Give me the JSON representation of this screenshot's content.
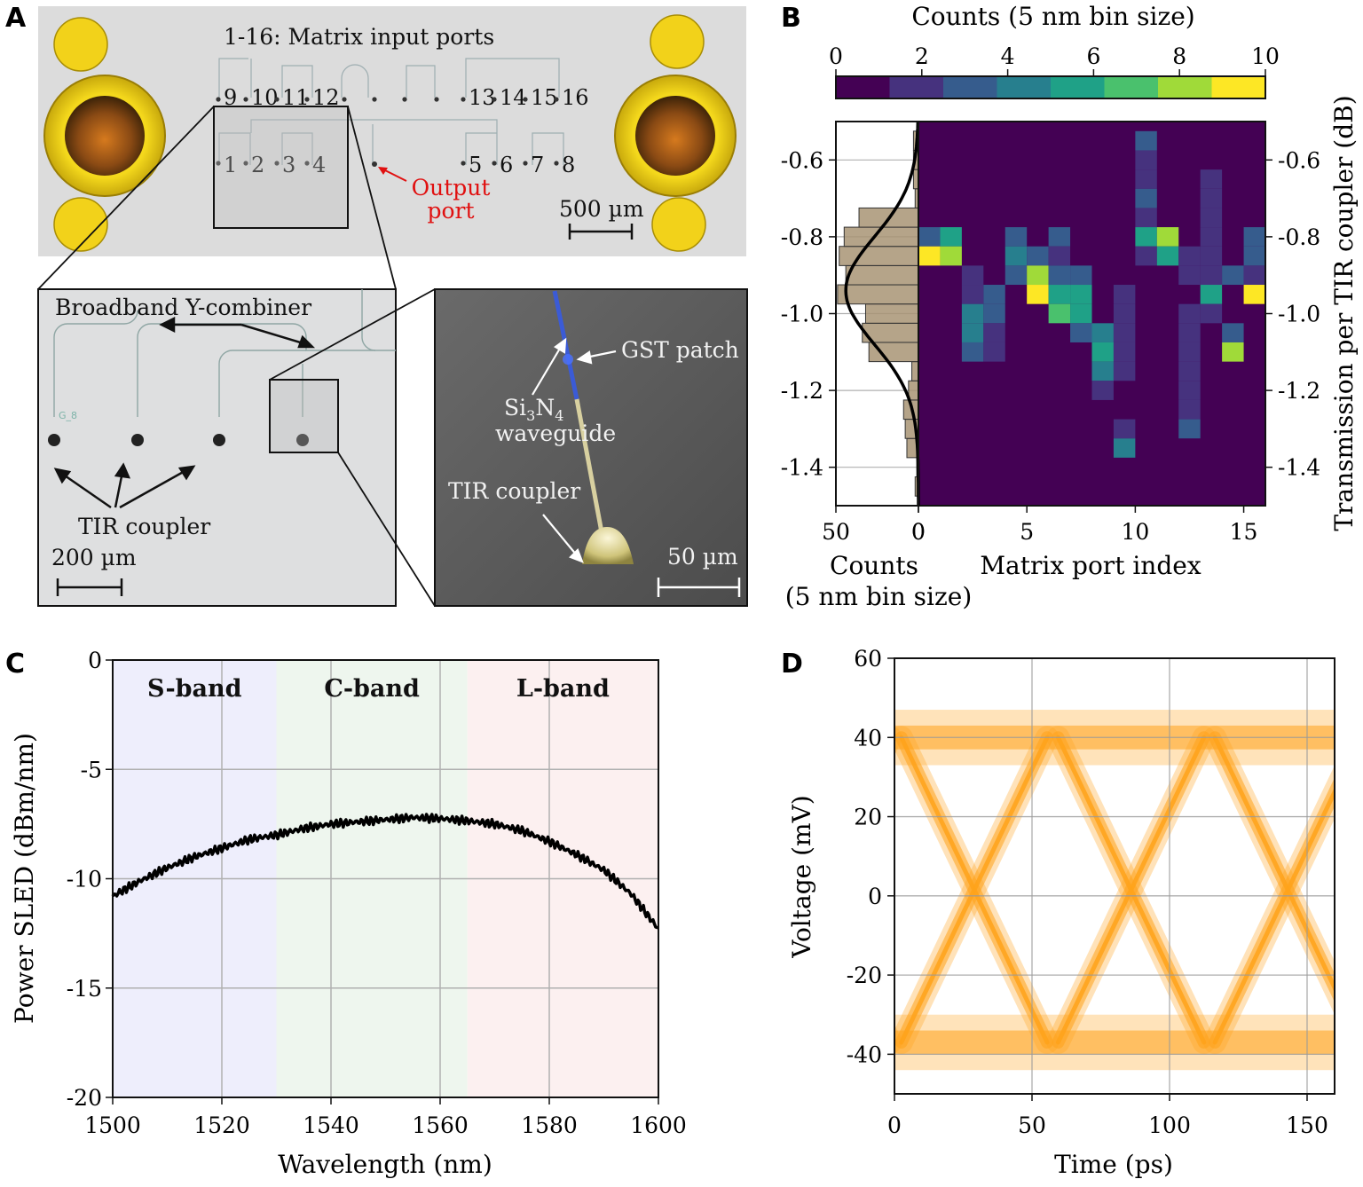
{
  "panels": {
    "a": "A",
    "b": "B",
    "c": "C",
    "d": "D"
  },
  "panel_a": {
    "title": "1-16: Matrix input ports",
    "ports_top": [
      "9",
      "10",
      "11",
      "12",
      "13",
      "14",
      "15",
      "16"
    ],
    "ports_bottom": [
      "1",
      "2",
      "3",
      "4",
      "5",
      "6",
      "7",
      "8"
    ],
    "output_port": [
      "Output",
      "port"
    ],
    "scale_main": "500 µm",
    "combiner_label": "Broadband Y-combiner",
    "tir_label": "TIR coupler",
    "scale_zoom": "200 µm",
    "chip_label": "G_8",
    "sem": {
      "gst": "GST  patch",
      "sin_prefix": "Si",
      "sin_sub1": "3",
      "sin_mid": "N",
      "sin_sub2": "4",
      "waveguide": "waveguide",
      "tir": "TIR coupler",
      "scale": "50 µm"
    },
    "colors": {
      "output": "#e01010",
      "pad": "#f2d21a",
      "chip": "#dcdcdc"
    }
  },
  "chart_data": [
    {
      "id": "B",
      "type": "heatmap",
      "colorbar": {
        "label": "Counts (5 nm bin size)",
        "range": [
          0,
          10
        ],
        "ticks": [
          "0",
          "2",
          "4",
          "6",
          "8",
          "10"
        ],
        "colors": [
          "#440154",
          "#46327e",
          "#365c8d",
          "#277f8e",
          "#1fa187",
          "#4ac16d",
          "#a0da39",
          "#fde725"
        ]
      },
      "xlabel": "Matrix port index",
      "xlim": [
        0,
        16
      ],
      "x_ticks": [
        "0",
        "5",
        "10",
        "15"
      ],
      "ylim": [
        -1.5,
        -0.5
      ],
      "y_ticks": [
        "-0.6",
        "-0.8",
        "-1.0",
        "-1.2",
        "-1.4"
      ],
      "y_tick_values": [
        -0.6,
        -0.8,
        -1.0,
        -1.2,
        -1.4
      ],
      "ylabel_right": "Transmission per TIR coupler (dB)",
      "bin_height_db": 0.05,
      "cells": [
        [
          0,
          -0.8,
          3
        ],
        [
          0,
          -0.85,
          10
        ],
        [
          1,
          -0.8,
          5
        ],
        [
          1,
          -0.85,
          9
        ],
        [
          2,
          -0.9,
          2
        ],
        [
          2,
          -0.95,
          2
        ],
        [
          2,
          -1.0,
          4
        ],
        [
          2,
          -1.05,
          4
        ],
        [
          2,
          -1.1,
          3
        ],
        [
          3,
          -0.95,
          3
        ],
        [
          3,
          -1.0,
          3
        ],
        [
          3,
          -1.05,
          2
        ],
        [
          3,
          -1.1,
          2
        ],
        [
          4,
          -0.8,
          3
        ],
        [
          4,
          -0.85,
          4
        ],
        [
          4,
          -0.9,
          3
        ],
        [
          5,
          -0.85,
          3
        ],
        [
          5,
          -0.9,
          8
        ],
        [
          5,
          -0.95,
          10
        ],
        [
          6,
          -0.8,
          3
        ],
        [
          6,
          -0.85,
          2
        ],
        [
          6,
          -0.9,
          3
        ],
        [
          6,
          -0.95,
          5
        ],
        [
          6,
          -1.0,
          7
        ],
        [
          7,
          -0.9,
          3
        ],
        [
          7,
          -0.95,
          5
        ],
        [
          7,
          -1.0,
          5
        ],
        [
          7,
          -1.05,
          3
        ],
        [
          8,
          -1.05,
          4
        ],
        [
          8,
          -1.1,
          6
        ],
        [
          8,
          -1.15,
          4
        ],
        [
          8,
          -1.2,
          2
        ],
        [
          9,
          -0.95,
          2
        ],
        [
          9,
          -1.0,
          2
        ],
        [
          9,
          -1.05,
          2
        ],
        [
          9,
          -1.1,
          2
        ],
        [
          9,
          -1.15,
          1
        ],
        [
          9,
          -1.3,
          2
        ],
        [
          9,
          -1.35,
          4
        ],
        [
          10,
          -0.55,
          3
        ],
        [
          10,
          -0.6,
          1
        ],
        [
          10,
          -0.65,
          1
        ],
        [
          10,
          -0.7,
          3
        ],
        [
          10,
          -0.75,
          2
        ],
        [
          10,
          -0.8,
          6
        ],
        [
          10,
          -0.85,
          1
        ],
        [
          11,
          -0.8,
          8
        ],
        [
          11,
          -0.85,
          6
        ],
        [
          12,
          -0.85,
          1
        ],
        [
          12,
          -0.9,
          1
        ],
        [
          13,
          -0.65,
          1
        ],
        [
          13,
          -0.7,
          1
        ],
        [
          13,
          -0.75,
          1
        ],
        [
          13,
          -0.8,
          1
        ],
        [
          13,
          -0.85,
          1
        ],
        [
          13,
          -0.9,
          1
        ],
        [
          13,
          -0.95,
          5
        ],
        [
          13,
          -1.0,
          2
        ],
        [
          12,
          -1.0,
          1
        ],
        [
          12,
          -1.05,
          1
        ],
        [
          12,
          -1.1,
          1
        ],
        [
          12,
          -1.15,
          1
        ],
        [
          12,
          -1.2,
          1
        ],
        [
          12,
          -1.25,
          1
        ],
        [
          12,
          -1.3,
          3
        ],
        [
          14,
          -0.9,
          3
        ],
        [
          14,
          -1.05,
          3
        ],
        [
          14,
          -1.1,
          8
        ],
        [
          15,
          -0.8,
          3
        ],
        [
          15,
          -0.85,
          3
        ],
        [
          15,
          -0.9,
          2
        ],
        [
          15,
          -0.95,
          10
        ]
      ],
      "histogram": {
        "xlabel": [
          "Counts",
          "(5 nm bin size)"
        ],
        "xlim": [
          50,
          0
        ],
        "x_ticks": [
          "50",
          "0"
        ],
        "bars": [
          [
            -1.45,
            2
          ],
          [
            -1.4,
            1
          ],
          [
            -1.35,
            7
          ],
          [
            -1.3,
            8
          ],
          [
            -1.25,
            9
          ],
          [
            -1.2,
            6
          ],
          [
            -1.15,
            4
          ],
          [
            -1.1,
            30
          ],
          [
            -1.05,
            34
          ],
          [
            -1.0,
            32
          ],
          [
            -0.95,
            49
          ],
          [
            -0.9,
            44
          ],
          [
            -0.85,
            48
          ],
          [
            -0.8,
            45
          ],
          [
            -0.75,
            36
          ],
          [
            -0.7,
            2
          ],
          [
            -0.65,
            3
          ],
          [
            -0.6,
            3
          ],
          [
            -0.55,
            3
          ]
        ],
        "gauss": {
          "mean": -0.94,
          "sd": 0.14,
          "peak": 44
        },
        "bar_color": "#a89474"
      }
    },
    {
      "id": "C",
      "type": "line",
      "xlabel": "Wavelength (nm)",
      "ylabel": "Power SLED (dBm/nm)",
      "xlim": [
        1500,
        1600
      ],
      "ylim": [
        -20,
        0
      ],
      "x_ticks": [
        "1500",
        "1520",
        "1540",
        "1560",
        "1580",
        "1600"
      ],
      "y_ticks": [
        "0",
        "-5",
        "-10",
        "-15",
        "-20"
      ],
      "bands": [
        {
          "label": "S-band",
          "range": [
            1500,
            1530
          ],
          "color": "#eeeefc"
        },
        {
          "label": "C-band",
          "range": [
            1530,
            1565
          ],
          "color": "#eef6ee"
        },
        {
          "label": "L-band",
          "range": [
            1565,
            1600
          ],
          "color": "#fcf0f0"
        }
      ],
      "x": [
        1500,
        1505,
        1510,
        1515,
        1520,
        1525,
        1530,
        1535,
        1540,
        1545,
        1550,
        1555,
        1560,
        1565,
        1570,
        1575,
        1580,
        1585,
        1590,
        1595,
        1600
      ],
      "y": [
        -10.8,
        -10.1,
        -9.5,
        -9.0,
        -8.6,
        -8.2,
        -8.0,
        -7.7,
        -7.5,
        -7.4,
        -7.3,
        -7.2,
        -7.25,
        -7.35,
        -7.5,
        -7.8,
        -8.3,
        -8.9,
        -9.6,
        -10.7,
        -12.3
      ]
    },
    {
      "id": "D",
      "type": "eye-diagram",
      "xlabel": "Time (ps)",
      "ylabel": "Voltage (mV)",
      "xlim": [
        0,
        160
      ],
      "ylim": [
        -50,
        60
      ],
      "x_ticks": [
        "0",
        "50",
        "100",
        "150"
      ],
      "y_ticks": [
        "60",
        "40",
        "20",
        "0",
        "-20",
        "-40"
      ],
      "levels_mv": [
        40,
        -37
      ],
      "crossings_ps": [
        29,
        86,
        143
      ],
      "color": "#ffa31a"
    }
  ]
}
